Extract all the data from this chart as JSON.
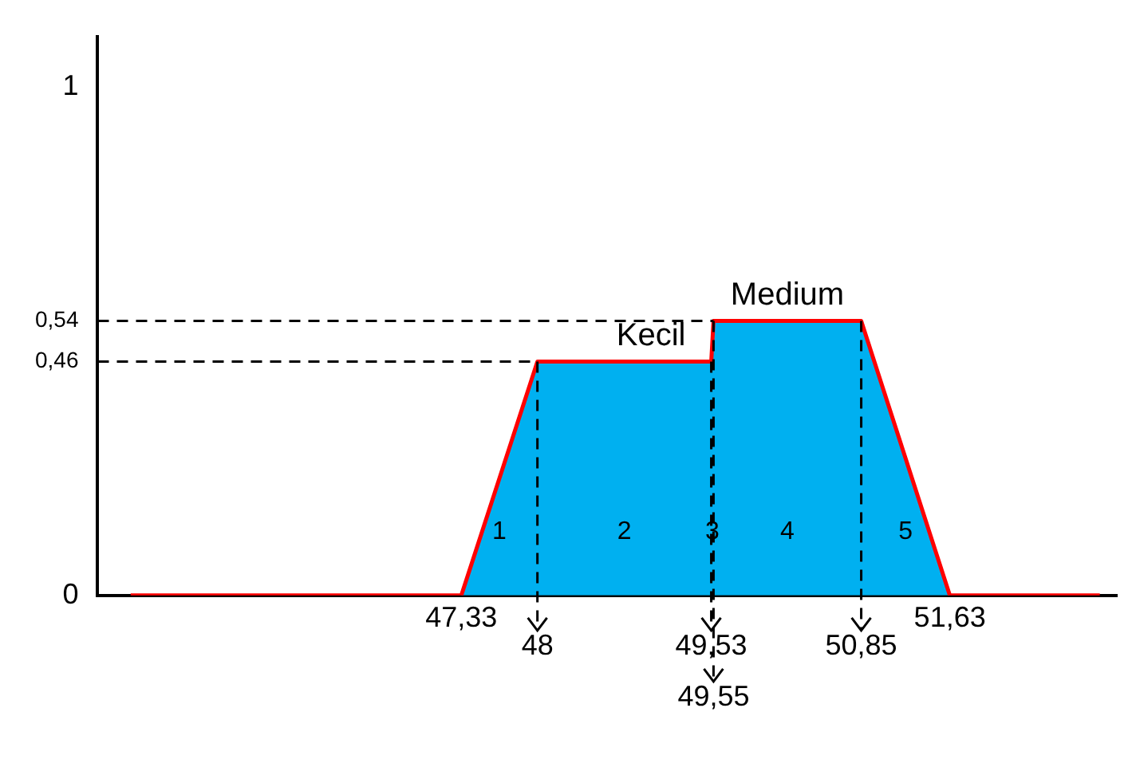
{
  "chart_data": {
    "type": "area",
    "x": [
      44.42,
      47.33,
      48,
      49.53,
      49.55,
      50.85,
      51.63,
      52.95
    ],
    "series": [
      {
        "type": "area",
        "color": "#00b0f0",
        "values": [
          0,
          0,
          0.46,
          0.46,
          0.54,
          0.54,
          0,
          0
        ]
      }
    ],
    "xlim": [
      44.13,
      53.1
    ],
    "xticks": [
      {
        "value": 47.33,
        "label": "47,33"
      },
      {
        "value": 51.63,
        "label": "51,63"
      }
    ],
    "ylim": [
      0,
      1.1
    ],
    "yticks": [
      0,
      {
        "value": 0.46,
        "label": "0,46"
      },
      {
        "value": 0.54,
        "label": "0,54"
      },
      1
    ],
    "grid": false,
    "legend": false,
    "marker": "none",
    "ref_lines": [
      {
        "axis": "y",
        "value": 0.46,
        "line_style": "dashed"
      },
      {
        "axis": "y",
        "value": 0.54,
        "line_style": "dashed"
      },
      {
        "axis": "x",
        "value": 48,
        "label": "48",
        "line_style": "dashed"
      },
      {
        "axis": "x",
        "value": 49.53,
        "label": "49,53",
        "line_style": "dashed"
      },
      {
        "axis": "x",
        "value": 49.55,
        "label": "49,55",
        "line_style": "dashed"
      },
      {
        "axis": "x",
        "value": 50.85,
        "label": "50,85",
        "line_style": "dashed"
      }
    ],
    "annotations": [
      {
        "text": "Kecil",
        "x": 49.0,
        "y": 0.46
      },
      {
        "text": "Medium",
        "x": 50.2,
        "y": 0.54
      },
      "1",
      "2",
      "3",
      "4",
      "5"
    ]
  }
}
